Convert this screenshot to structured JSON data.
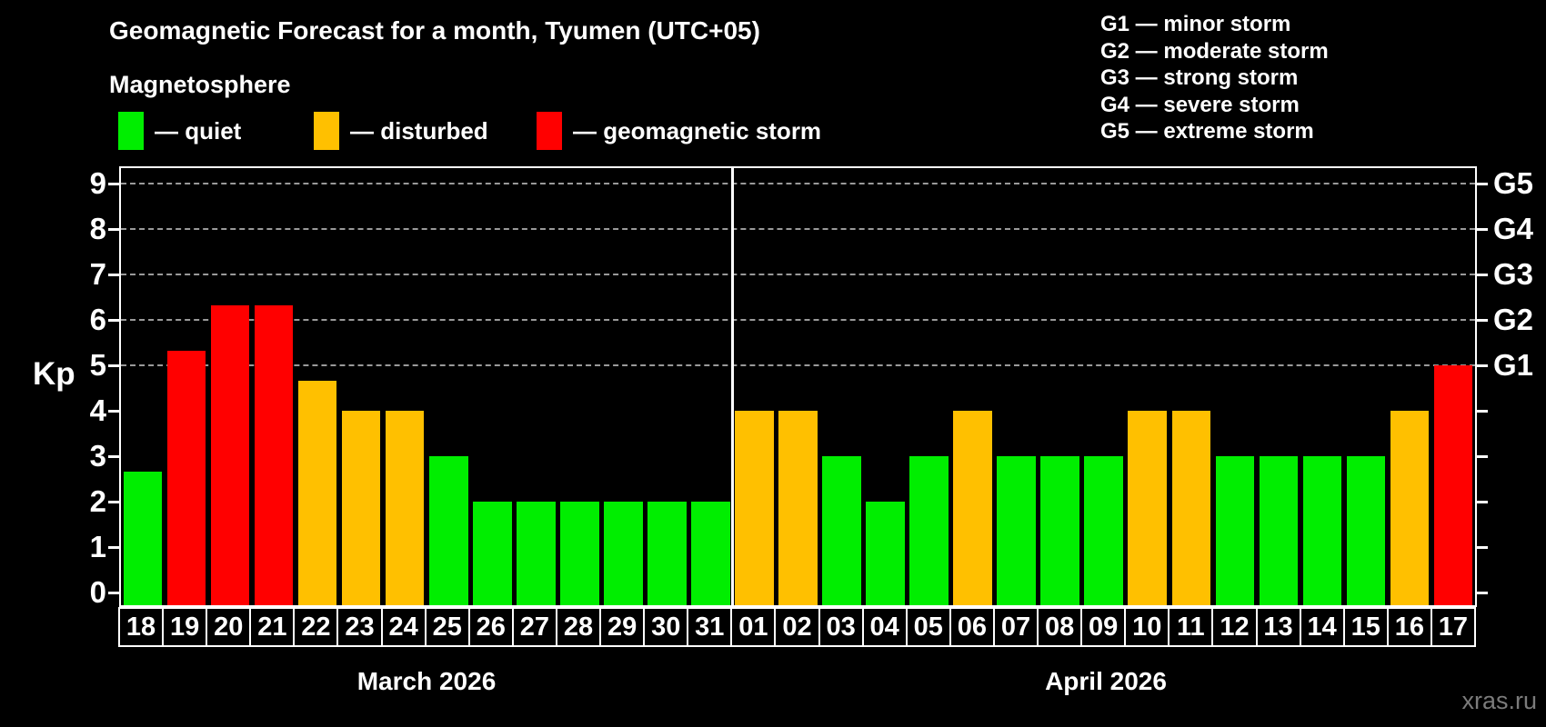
{
  "title": "Geomagnetic Forecast for a month, Tyumen (UTC+05)",
  "subtitle": "Magnetosphere",
  "condition_legend": [
    {
      "key": "quiet",
      "label": "— quiet",
      "color": "#00ee00"
    },
    {
      "key": "disturbed",
      "label": "— disturbed",
      "color": "#ffc000"
    },
    {
      "key": "storm",
      "label": "— geomagnetic storm",
      "color": "#ff0000"
    }
  ],
  "storm_scale_legend": [
    "G1 — minor storm",
    "G2 — moderate storm",
    "G3 — strong storm",
    "G4 — severe storm",
    "G5 — extreme storm"
  ],
  "watermark": "xras.ru",
  "chart_data": {
    "type": "bar",
    "title": "Geomagnetic Forecast for a month, Tyumen (UTC+05)",
    "ylabel": "Kp",
    "ylim": [
      0,
      9
    ],
    "yticks": [
      0,
      1,
      2,
      3,
      4,
      5,
      6,
      7,
      8,
      9
    ],
    "gridlines_at": [
      5,
      6,
      7,
      8,
      9
    ],
    "grid": "dashed horizontal at storm levels only",
    "legend_position": "top",
    "right_axis": [
      {
        "kp": 5,
        "label": "G1"
      },
      {
        "kp": 6,
        "label": "G2"
      },
      {
        "kp": 7,
        "label": "G3"
      },
      {
        "kp": 8,
        "label": "G4"
      },
      {
        "kp": 9,
        "label": "G5"
      }
    ],
    "colors": {
      "quiet": "#00ee00",
      "disturbed": "#ffc000",
      "storm": "#ff0000"
    },
    "color_rules": {
      "storm_min_kp": 5,
      "disturbed_min_kp": 3.5
    },
    "months": [
      {
        "label": "March 2026",
        "bars": [
          {
            "day": "18",
            "kp": 2.67
          },
          {
            "day": "19",
            "kp": 5.33
          },
          {
            "day": "20",
            "kp": 6.33
          },
          {
            "day": "21",
            "kp": 6.33
          },
          {
            "day": "22",
            "kp": 4.67
          },
          {
            "day": "23",
            "kp": 4
          },
          {
            "day": "24",
            "kp": 4
          },
          {
            "day": "25",
            "kp": 3
          },
          {
            "day": "26",
            "kp": 2
          },
          {
            "day": "27",
            "kp": 2
          },
          {
            "day": "28",
            "kp": 2
          },
          {
            "day": "29",
            "kp": 2
          },
          {
            "day": "30",
            "kp": 2
          },
          {
            "day": "31",
            "kp": 2
          }
        ]
      },
      {
        "label": "April 2026",
        "bars": [
          {
            "day": "01",
            "kp": 4
          },
          {
            "day": "02",
            "kp": 4
          },
          {
            "day": "03",
            "kp": 3
          },
          {
            "day": "04",
            "kp": 2
          },
          {
            "day": "05",
            "kp": 3
          },
          {
            "day": "06",
            "kp": 4
          },
          {
            "day": "07",
            "kp": 3
          },
          {
            "day": "08",
            "kp": 3
          },
          {
            "day": "09",
            "kp": 3
          },
          {
            "day": "10",
            "kp": 4
          },
          {
            "day": "11",
            "kp": 4
          },
          {
            "day": "12",
            "kp": 3
          },
          {
            "day": "13",
            "kp": 3
          },
          {
            "day": "14",
            "kp": 3
          },
          {
            "day": "15",
            "kp": 3
          },
          {
            "day": "16",
            "kp": 4
          },
          {
            "day": "17",
            "kp": 5
          }
        ]
      }
    ]
  }
}
